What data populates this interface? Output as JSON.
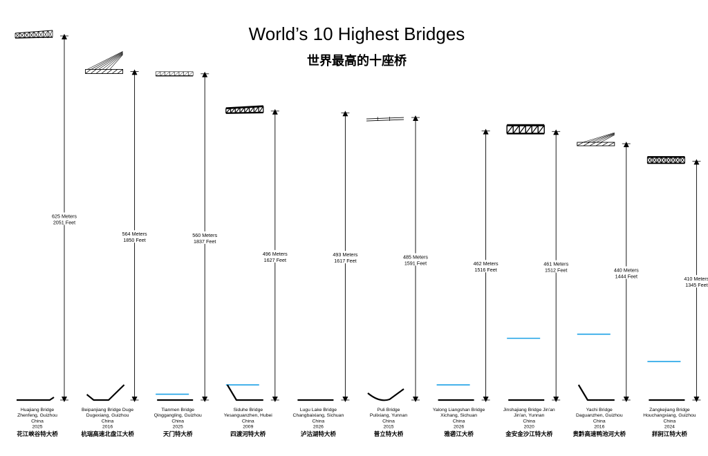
{
  "chart_data": {
    "type": "bar",
    "title": "World’s 10 Highest Bridges",
    "subtitle": "世界最高的十座桥",
    "xlabel": "",
    "ylabel": "",
    "ylim": [
      0,
      625
    ],
    "grid": false,
    "accent_color": "#1aa0e6",
    "bridges": [
      {
        "name": "Huajiang Bridge",
        "location": "Zhenfeng, Guizhou",
        "country": "China",
        "year": "2025",
        "zh_name": "花江峡谷特大桥",
        "meters": 625,
        "meters_label": "625 Meters",
        "feet_label": "2051 Feet",
        "deck_style": "truss",
        "terrain": "flat-wide",
        "water_meters": null
      },
      {
        "name": "Beipanjiang Bridge Duge",
        "location": "Dugexiang, Guizhou",
        "country": "China",
        "year": "2016",
        "zh_name": "杭瑞高速北盘江大桥",
        "meters": 564,
        "meters_label": "564 Meters",
        "feet_label": "1850 Feet",
        "deck_style": "cable-stayed",
        "terrain": "valley",
        "water_meters": null
      },
      {
        "name": "Tianmen Bridge",
        "location": "Qinggangling, Guizhou",
        "country": "China",
        "year": "2025",
        "zh_name": "天门特大桥",
        "meters": 560,
        "meters_label": "560 Meters",
        "feet_label": "1837 Feet",
        "deck_style": "truss-light",
        "terrain": "flat",
        "water_meters": 10
      },
      {
        "name": "Siduhe Bridge",
        "location": "Yesanguanzhen, Hubei",
        "country": "China",
        "year": "2009",
        "zh_name": "四渡河特大桥",
        "meters": 496,
        "meters_label": "496 Meters",
        "feet_label": "1627 Feet",
        "deck_style": "truss-heavy",
        "terrain": "slope",
        "water_meters": 26
      },
      {
        "name": "Lugu Lake Bridge",
        "location": "Changbaixiang, Sichuan",
        "country": "China",
        "year": "2026",
        "zh_name": "泸沽湖特大桥",
        "meters": 493,
        "meters_label": "493 Meters",
        "feet_label": "1617 Feet",
        "deck_style": "none",
        "terrain": "flat",
        "water_meters": null
      },
      {
        "name": "Puli Bridge",
        "location": "Pulixiang, Yunnan",
        "country": "China",
        "year": "2015",
        "zh_name": "普立特大桥",
        "meters": 485,
        "meters_label": "485 Meters",
        "feet_label": "1591 Feet",
        "deck_style": "thin",
        "terrain": "bowl",
        "water_meters": null
      },
      {
        "name": "Yalong Liangshan Bridge",
        "location": "Xichang, Sichuan",
        "country": "China",
        "year": "2026",
        "zh_name": "雅砻江大桥",
        "meters": 462,
        "meters_label": "462 Meters",
        "feet_label": "1516 Feet",
        "deck_style": "none",
        "terrain": "flat",
        "water_meters": 26
      },
      {
        "name": "Jinshajiang Bridge Jin'an",
        "location": "Jin'an, Yunnan",
        "country": "China",
        "year": "2020",
        "zh_name": "金安金沙江特大桥",
        "meters": 461,
        "meters_label": "461 Meters",
        "feet_label": "1512 Feet",
        "deck_style": "truss-box",
        "terrain": "flat",
        "water_meters": 106
      },
      {
        "name": "Yachi Bridge",
        "location": "Daguanzhen, Guizhou",
        "country": "China",
        "year": "2016",
        "zh_name": "贵黔高速鸭池河大桥",
        "meters": 440,
        "meters_label": "440 Meters",
        "feet_label": "1444 Feet",
        "deck_style": "cable-stayed-small",
        "terrain": "slope",
        "water_meters": 113
      },
      {
        "name": "Zangkejiang Bridge",
        "location": "Houchangxiang, Guizhou",
        "country": "China",
        "year": "2024",
        "zh_name": "牂牁江特大桥",
        "meters": 410,
        "meters_label": "410 Meters",
        "feet_label": "1345 Feet",
        "deck_style": "truss-x",
        "terrain": "flat",
        "water_meters": 66
      }
    ]
  }
}
